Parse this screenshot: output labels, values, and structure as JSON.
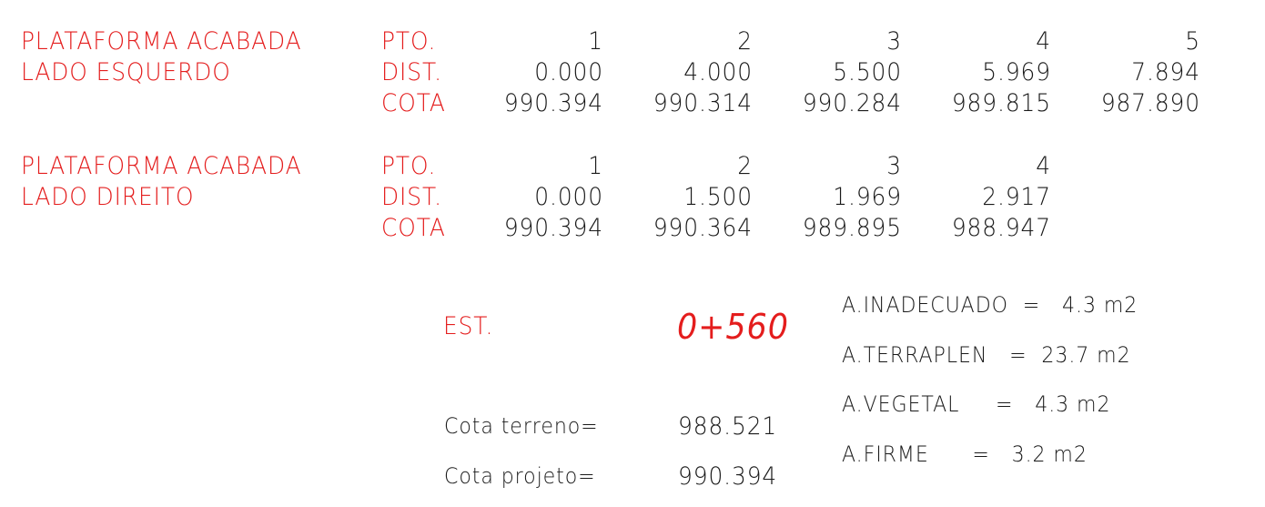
{
  "left_side": {
    "title_line1": "PLATAFORMA ACABADA",
    "title_line2": "LADO ESQUERDO",
    "label_pto": "PTO.",
    "label_dist": "DIST.",
    "label_cota": "COTA",
    "pto": [
      "1",
      "2",
      "3",
      "4",
      "5"
    ],
    "dist": [
      "0.000",
      "4.000",
      "5.500",
      "5.969",
      "7.894"
    ],
    "cota": [
      "990.394",
      "990.314",
      "990.284",
      "989.815",
      "987.890"
    ]
  },
  "right_side": {
    "title_line1": "PLATAFORMA ACABADA",
    "title_line2": "LADO DIREITO",
    "label_pto": "PTO.",
    "label_dist": "DIST.",
    "label_cota": "COTA",
    "pto": [
      "1",
      "2",
      "3",
      "4"
    ],
    "dist": [
      "0.000",
      "1.500",
      "1.969",
      "2.917"
    ],
    "cota": [
      "990.394",
      "990.364",
      "989.895",
      "988.947"
    ]
  },
  "station": {
    "label": "EST.",
    "value": "0+560",
    "cota_terreno_label": "Cota terreno=",
    "cota_terreno_value": "988.521",
    "cota_projeto_label": "Cota projeto=",
    "cota_projeto_value": "990.394"
  },
  "areas": {
    "inadecuado": "A.INADECUADO  =   4.3 m2",
    "terraplen": "A.TERRAPLEN   =  23.7 m2",
    "vegetal": "A.VEGETAL     =   4.3 m2",
    "firme": "A.FIRME      =   3.2 m2"
  },
  "colors": {
    "label_red": "#e41d1d",
    "value_black": "#1a1a1a"
  }
}
